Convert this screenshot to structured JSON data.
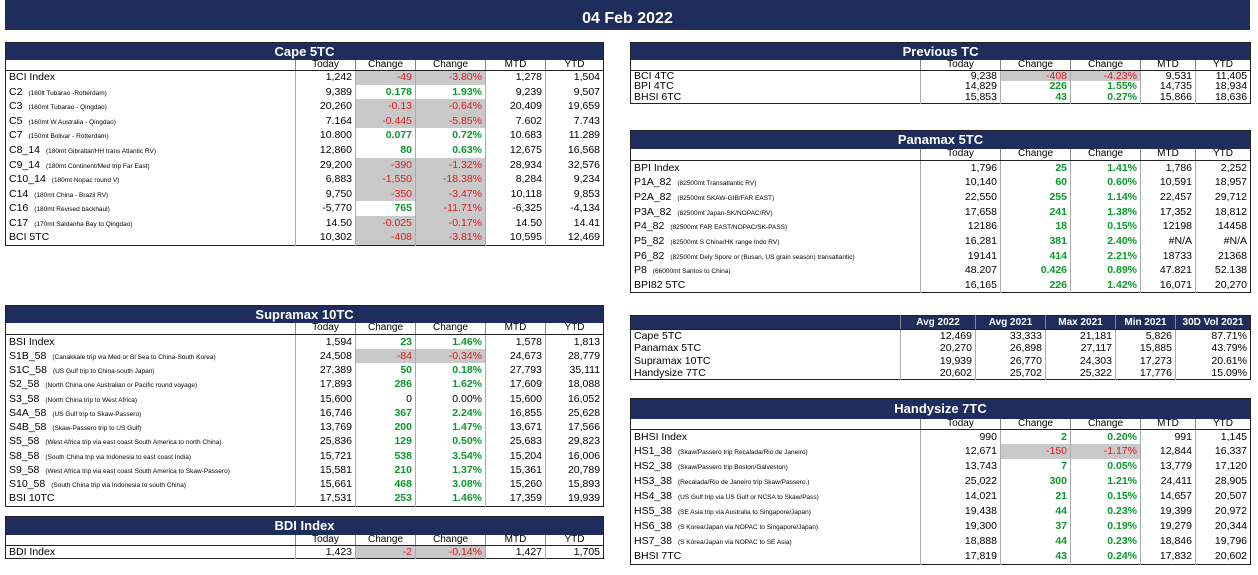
{
  "banner": {
    "date": "04 Feb 2022"
  },
  "tables": [
    {
      "title": "Cape 5TC",
      "headers": [
        "Today",
        "Change",
        "Change",
        "MTD",
        "YTD"
      ],
      "rows": [
        {
          "name": "BCI Index",
          "values": [
            "1,242",
            "-49",
            "-3.80%",
            "1,278",
            "1,504"
          ]
        },
        {
          "name": "C2",
          "route": "(160lt Tubarao -Rotterdam)",
          "values": [
            "9,389",
            "0.178",
            "1.93%",
            "9,239",
            "9,507"
          ]
        },
        {
          "name": "C3",
          "route": "(160mt Tubarao - Qingdao)",
          "values": [
            "20,260",
            "-0.13",
            "-0.64%",
            "20,409",
            "19,659"
          ]
        },
        {
          "name": "C5",
          "route": "(160mt W Australia - Qingdao)",
          "values": [
            "7.164",
            "-0.445",
            "-5.85%",
            "7.602",
            "7.743"
          ]
        },
        {
          "name": "C7",
          "route": "(150mt Bolivar - Rotterdam)",
          "values": [
            "10.800",
            "0.077",
            "0.72%",
            "10.683",
            "11.289"
          ]
        },
        {
          "name": "C8_14",
          "route": "(180mt Gibraltar/HH trans Atlantic RV)",
          "values": [
            "12,860",
            "80",
            "0.63%",
            "12,675",
            "16,568"
          ]
        },
        {
          "name": "C9_14",
          "route": "(180mt Continent/Med trip Far East)",
          "values": [
            "29,200",
            "-390",
            "-1.32%",
            "28,934",
            "32,576"
          ]
        },
        {
          "name": "C10_14",
          "route": "(180mt Nopac round V)",
          "values": [
            "6,883",
            "-1,550",
            "-18.38%",
            "8,284",
            "9,234"
          ]
        },
        {
          "name": "C14",
          "route": "(180mt China - Brazil RV)",
          "values": [
            "9,750",
            "-350",
            "-3.47%",
            "10,118",
            "9,853"
          ]
        },
        {
          "name": "C16",
          "route": "(180mt Revised backhaul)",
          "values": [
            "-5,770",
            "765",
            "-11.71%",
            "-6,325",
            "-4,134"
          ]
        },
        {
          "name": "C17",
          "route": "(170mt Saldanha Bay to Qingdao)",
          "values": [
            "14.50",
            "-0.025",
            "-0.17%",
            "14.50",
            "14.41"
          ]
        },
        {
          "name": "BCI 5TC",
          "values": [
            "10,302",
            "-408",
            "-3.81%",
            "10,595",
            "12,469"
          ]
        }
      ]
    },
    {
      "title": "Supramax 10TC",
      "headers": [
        "Today",
        "Change",
        "Change",
        "MTD",
        "YTD"
      ],
      "rows": [
        {
          "name": "BSI Index",
          "values": [
            "1,594",
            "23",
            "1.46%",
            "1,578",
            "1,813"
          ]
        },
        {
          "name": "S1B_58",
          "route": "(Canakkale trip via Med or Bl Sea to China-South Korea)",
          "values": [
            "24,508",
            "-84",
            "-0.34%",
            "24,673",
            "28,779"
          ]
        },
        {
          "name": "S1C_58",
          "route": "(US Gulf trip to China-south Japan)",
          "values": [
            "27,389",
            "50",
            "0.18%",
            "27,793",
            "35,111"
          ]
        },
        {
          "name": "S2_58",
          "route": "(North China one Australian or Pacific round voyage)",
          "values": [
            "17,893",
            "286",
            "1.62%",
            "17,609",
            "18,088"
          ]
        },
        {
          "name": "S3_58",
          "route": "(North China trip to West Africa)",
          "values": [
            "15,600",
            "0",
            "0.00%",
            "15,600",
            "16,052"
          ]
        },
        {
          "name": "S4A_58",
          "route": "(US Gulf trip to Skaw-Passero)",
          "values": [
            "16,746",
            "367",
            "2.24%",
            "16,855",
            "25,628"
          ]
        },
        {
          "name": "S4B_58",
          "route": "(Skaw-Passero trip to US Gulf)",
          "values": [
            "13,769",
            "200",
            "1.47%",
            "13,671",
            "17,566"
          ]
        },
        {
          "name": "S5_58",
          "route": "(West Africa trip via east coast South America to north China)",
          "values": [
            "25,836",
            "129",
            "0.50%",
            "25,683",
            "29,823"
          ]
        },
        {
          "name": "S8_58",
          "route": "(South China trip via Indonesia to east coast India)",
          "values": [
            "15,721",
            "538",
            "3.54%",
            "15,204",
            "16,006"
          ]
        },
        {
          "name": "S9_58",
          "route": "(West Africa trip via east coast South America to Skaw-Passero)",
          "values": [
            "15,581",
            "210",
            "1.37%",
            "15,361",
            "20,789"
          ]
        },
        {
          "name": "S10_58",
          "route": "(South China trip via Indonesia to south China)",
          "values": [
            "15,661",
            "468",
            "3.08%",
            "15,260",
            "15,893"
          ]
        },
        {
          "name": "BSI 10TC",
          "values": [
            "17,531",
            "253",
            "1.46%",
            "17,359",
            "19,939"
          ]
        }
      ]
    },
    {
      "title": "BDI Index",
      "headers": [
        "Today",
        "Change",
        "Change",
        "MTD",
        "YTD"
      ],
      "rows": [
        {
          "name": "BDI Index",
          "values": [
            "1,423",
            "-2",
            "-0.14%",
            "1,427",
            "1,705"
          ]
        }
      ]
    },
    {
      "title": "Previous TC",
      "headers": [
        "Today",
        "Change",
        "Change",
        "MTD",
        "YTD"
      ],
      "rows": [
        {
          "name": "BCI 4TC",
          "values": [
            "9,238",
            "-408",
            "-4.23%",
            "9,531",
            "11,405"
          ]
        },
        {
          "name": "BPI 4TC",
          "values": [
            "14,829",
            "226",
            "1.55%",
            "14,735",
            "18,934"
          ]
        },
        {
          "name": "BHSI 6TC",
          "values": [
            "15,853",
            "43",
            "0.27%",
            "15,866",
            "18,636"
          ]
        }
      ]
    },
    {
      "title": "Panamax 5TC",
      "headers": [
        "Today",
        "Change",
        "Change",
        "MTD",
        "YTD"
      ],
      "rows": [
        {
          "name": "BPI Index",
          "values": [
            "1,796",
            "25",
            "1.41%",
            "1,786",
            "2,252"
          ]
        },
        {
          "name": "P1A_82",
          "route": "(82500mt Transatlantic RV)",
          "values": [
            "10,140",
            "60",
            "0.60%",
            "10,591",
            "18,957"
          ]
        },
        {
          "name": "P2A_82",
          "route": "(82500mt SKAW-GIB/FAR EAST)",
          "values": [
            "22,550",
            "255",
            "1.14%",
            "22,457",
            "29,712"
          ]
        },
        {
          "name": "P3A_82",
          "route": "(82500mt Japan-SK/NOPAC/RV)",
          "values": [
            "17,658",
            "241",
            "1.38%",
            "17,352",
            "18,812"
          ]
        },
        {
          "name": "P4_82",
          "route": "(82500mt FAR EAST/NOPAC/SK-PASS)",
          "values": [
            "12186",
            "18",
            "0.15%",
            "12198",
            "14458"
          ]
        },
        {
          "name": "P5_82",
          "route": "(82500mt S China/HK range Indo RV)",
          "values": [
            "16,281",
            "381",
            "2.40%",
            "#N/A",
            "#N/A"
          ]
        },
        {
          "name": "P6_82",
          "route": "(82500mt Dely Spore or (Busan, US grain season) transatlantic)",
          "values": [
            "19141",
            "414",
            "2.21%",
            "18733",
            "21368"
          ]
        },
        {
          "name": "P8",
          "route": "(66000mt Santos to China)",
          "values": [
            "48.207",
            "0.426",
            "0.89%",
            "47.821",
            "52.138"
          ]
        },
        {
          "name": "BPI82 5TC",
          "values": [
            "16,165",
            "226",
            "1.42%",
            "16,071",
            "20,270"
          ]
        }
      ]
    },
    {
      "headers": [
        "Avg 2022",
        "Avg 2021",
        "Max 2021",
        "Min 2021",
        "30D Vol 2021"
      ],
      "rows": [
        {
          "name": "Cape 5TC",
          "values": [
            "12,469",
            "33,333",
            "21,181",
            "5,826",
            "87.71%"
          ]
        },
        {
          "name": "Panamax 5TC",
          "values": [
            "20,270",
            "26,898",
            "27,117",
            "15,885",
            "43.79%"
          ]
        },
        {
          "name": "Supramax 10TC",
          "values": [
            "19,939",
            "26,770",
            "24,303",
            "17,273",
            "20.61%"
          ]
        },
        {
          "name": "Handysize 7TC",
          "values": [
            "20,602",
            "25,702",
            "25,322",
            "17,776",
            "15.09%"
          ]
        }
      ]
    },
    {
      "title": "Handysize 7TC",
      "headers": [
        "Today",
        "Change",
        "Change",
        "MTD",
        "YTD"
      ],
      "rows": [
        {
          "name": "BHSI Index",
          "values": [
            "990",
            "2",
            "0.20%",
            "991",
            "1,145"
          ]
        },
        {
          "name": "HS1_38",
          "route": "(Skaw/Passero trip Recalada/Rio de Janeiro)",
          "values": [
            "12,671",
            "-150",
            "-1.17%",
            "12,844",
            "16,337"
          ]
        },
        {
          "name": "HS2_38",
          "route": "(Skaw/Passero trip Boston/Galveston)",
          "values": [
            "13,743",
            "7",
            "0.05%",
            "13,779",
            "17,120"
          ]
        },
        {
          "name": "HS3_38",
          "route": "(Recalada/Rio de Janeiro trip Skaw/Passero.)",
          "values": [
            "25,022",
            "300",
            "1.21%",
            "24,411",
            "28,905"
          ]
        },
        {
          "name": "HS4_38",
          "route": "(US Gulf trip via US Gulf or NCSA to Skaw/Pass)",
          "values": [
            "14,021",
            "21",
            "0.15%",
            "14,657",
            "20,507"
          ]
        },
        {
          "name": "HS5_38",
          "route": "(SE Asia trip via Australia to Singapore/Japan)",
          "values": [
            "19,438",
            "44",
            "0.23%",
            "19,399",
            "20,972"
          ]
        },
        {
          "name": "HS6_38",
          "route": "(S Korea/Japan via NOPAC to Singapore/Japan)",
          "values": [
            "19,300",
            "37",
            "0.19%",
            "19,279",
            "20,344"
          ]
        },
        {
          "name": "HS7_38",
          "route": "(S Korea/Japan via NOPAC to SE Asia)",
          "values": [
            "18,888",
            "44",
            "0.23%",
            "18,846",
            "19,796"
          ]
        },
        {
          "name": "BHSI 7TC",
          "values": [
            "17,819",
            "43",
            "0.24%",
            "17,832",
            "20,602"
          ]
        }
      ]
    }
  ]
}
